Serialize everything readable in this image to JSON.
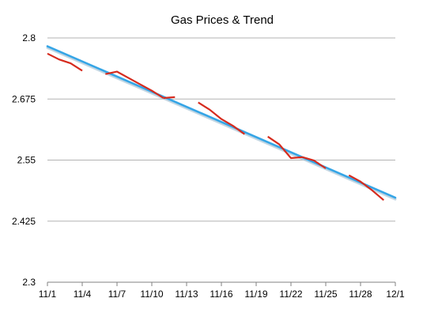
{
  "chart_data": {
    "type": "line",
    "title": "Gas Prices & Trend",
    "xlabel": "",
    "ylabel": "",
    "ylim": [
      2.3,
      2.8
    ],
    "yticks": [
      "2.3",
      "2.425",
      "2.55",
      "2.675",
      "2.8"
    ],
    "yticks_values": [
      2.3,
      2.425,
      2.55,
      2.675,
      2.8
    ],
    "xticks": [
      "11/1",
      "11/4",
      "11/7",
      "11/10",
      "11/13",
      "11/16",
      "11/19",
      "11/22",
      "11/25",
      "11/28",
      "12/1"
    ],
    "x_range_days": [
      0,
      30
    ],
    "grid": true,
    "legend": "none",
    "colors": {
      "price": "#d62b1e",
      "trend": "#35a5e6",
      "trend_shadow": "#a9c6d8",
      "grid": "#b3b3b3"
    },
    "series": [
      {
        "segments": [
          {
            "x": [
              "11/1",
              "11/2",
              "11/3",
              "11/4"
            ],
            "y": [
              2.768,
              2.756,
              2.748,
              2.733
            ]
          },
          {
            "x": [
              "11/6",
              "11/7",
              "11/8",
              "11/9",
              "11/10",
              "11/11"
            ],
            "y": [
              2.726,
              2.731,
              2.718,
              2.705,
              2.692,
              2.677
            ]
          },
          {
            "x": [
              "11/11",
              "11/12"
            ],
            "y": [
              2.677,
              2.679
            ]
          },
          {
            "x": [
              "11/14",
              "11/15",
              "11/16",
              "11/17",
              "11/18"
            ],
            "y": [
              2.668,
              2.653,
              2.634,
              2.62,
              2.603
            ]
          },
          {
            "x": [
              "11/20",
              "11/21",
              "11/22",
              "11/23",
              "11/24",
              "11/25"
            ],
            "y": [
              2.598,
              2.582,
              2.554,
              2.556,
              2.549,
              2.533
            ]
          },
          {
            "x": [
              "11/27",
              "11/28",
              "11/29",
              "11/30"
            ],
            "y": [
              2.519,
              2.506,
              2.488,
              2.468
            ]
          }
        ]
      },
      {
        "x": [
          "11/1",
          "12/1"
        ],
        "y": [
          2.783,
          2.473
        ]
      }
    ]
  }
}
